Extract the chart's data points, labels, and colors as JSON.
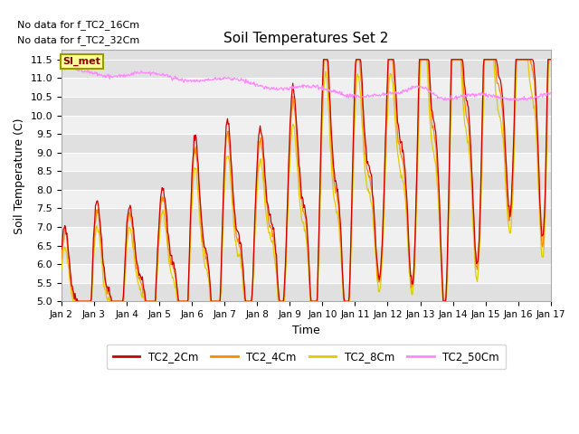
{
  "title": "Soil Temperatures Set 2",
  "xlabel": "Time",
  "ylabel": "Soil Temperature (C)",
  "ylim": [
    5.0,
    11.75
  ],
  "yticks": [
    5.0,
    5.5,
    6.0,
    6.5,
    7.0,
    7.5,
    8.0,
    8.5,
    9.0,
    9.5,
    10.0,
    10.5,
    11.0,
    11.5
  ],
  "xtick_labels": [
    "Jan 2",
    "Jan 3",
    "Jan 4",
    "Jan 5",
    "Jan 6",
    "Jan 7",
    "Jan 8",
    "Jan 9",
    "Jan 10",
    "Jan 11",
    "Jan 12",
    "Jan 13",
    "Jan 14",
    "Jan 15",
    "Jan 16",
    "Jan 17"
  ],
  "no_data_texts": [
    "No data for f_TC2_16Cm",
    "No data for f_TC2_32Cm"
  ],
  "SI_met_label": "SI_met",
  "colors": {
    "TC2_2Cm": "#cc0000",
    "TC2_4Cm": "#ff8800",
    "TC2_8Cm": "#ddcc00",
    "TC2_50Cm": "#ff88ff",
    "SI_met_bg": "#ffff99",
    "SI_met_border": "#999900",
    "SI_met_text": "#880000",
    "grid_color": "#ffffff",
    "alt_band": "#e0e0e0",
    "white_band": "#f0f0f0"
  },
  "legend_colors": [
    "#cc0000",
    "#ff8800",
    "#ddcc00",
    "#ff88ff"
  ],
  "legend_labels": [
    "TC2_2Cm",
    "TC2_4Cm",
    "TC2_8Cm",
    "TC2_50Cm"
  ],
  "n_points": 720
}
